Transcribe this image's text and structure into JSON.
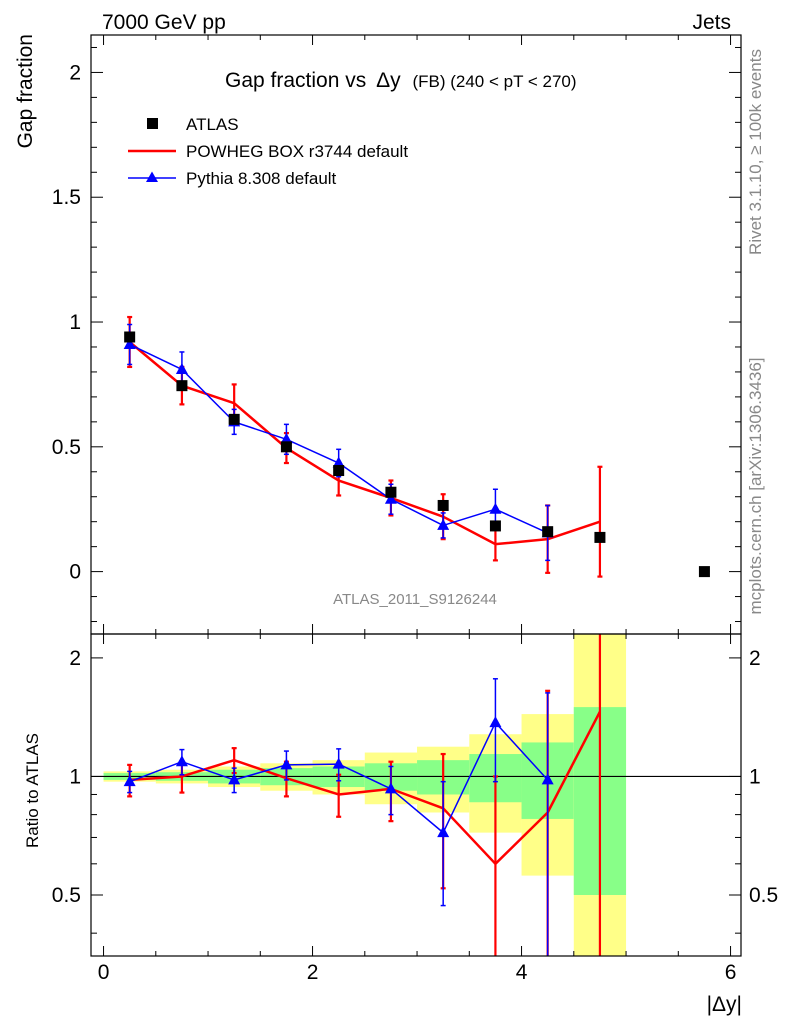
{
  "header": {
    "left": "7000 GeV pp",
    "right": "Jets",
    "title_main": "Gap fraction vs",
    "title_symbol": "Δy",
    "title_sub": "(FB)  (240 < pT < 270)",
    "side_top": "Rivet 3.1.10, ≥ 100k events",
    "side_bottom": "mcplots.cern.ch [arXiv:1306.3436]",
    "analysis": "ATLAS_2011_S9126244"
  },
  "colors": {
    "data": "#000000",
    "powheg": "#ff0000",
    "pythia": "#0000ff",
    "band_outer": "#ffff88",
    "band_inner": "#88ff88"
  },
  "chart_data": {
    "type": "line",
    "main": {
      "ylabel": "Gap fraction",
      "ylim": [
        -0.25,
        2.15
      ],
      "yticks": [
        {
          "v": 0,
          "label": "0"
        },
        {
          "v": 0.5,
          "label": "0.5"
        },
        {
          "v": 1,
          "label": "1"
        },
        {
          "v": 1.5,
          "label": "1.5"
        },
        {
          "v": 2,
          "label": "2"
        }
      ]
    },
    "ratio": {
      "ylabel": "Ratio to ATLAS",
      "ylim": [
        0.35,
        2.3
      ],
      "yticks": [
        {
          "v": 0.5,
          "label": "0.5"
        },
        {
          "v": 1,
          "label": "1"
        },
        {
          "v": 2,
          "label": "2"
        }
      ]
    },
    "xlabel": "|Δy|",
    "xlim": [
      -0.12,
      6.1
    ],
    "xticks": [
      {
        "v": 0,
        "label": "0"
      },
      {
        "v": 2,
        "label": "2"
      },
      {
        "v": 4,
        "label": "4"
      },
      {
        "v": 6,
        "label": "6"
      }
    ],
    "legend": [
      "ATLAS",
      "POWHEG BOX r3744 default",
      "Pythia 8.308 default"
    ],
    "legend_position": "top-left",
    "data": {
      "x": [
        0.25,
        0.75,
        1.25,
        1.75,
        2.25,
        2.75,
        3.25,
        3.75,
        4.25,
        4.75,
        5.75
      ],
      "y": [
        0.94,
        0.745,
        0.61,
        0.5,
        0.405,
        0.318,
        0.265,
        0.183,
        0.16,
        0.137,
        0.0
      ],
      "err": [
        0.015,
        0.015,
        0.015,
        0.015,
        0.015,
        0.015,
        0.015,
        0.015,
        0.015,
        0.015,
        0.0
      ]
    },
    "powheg": {
      "x": [
        0.25,
        0.75,
        1.25,
        1.75,
        2.25,
        2.75,
        3.25,
        3.75,
        4.25,
        4.75
      ],
      "y": [
        0.92,
        0.745,
        0.675,
        0.495,
        0.365,
        0.295,
        0.22,
        0.11,
        0.13,
        0.2
      ],
      "err": [
        0.1,
        0.075,
        0.075,
        0.06,
        0.06,
        0.07,
        0.09,
        0.065,
        0.135,
        0.22
      ]
    },
    "pythia": {
      "x": [
        0.25,
        0.75,
        1.25,
        1.75,
        2.25,
        2.75,
        3.25,
        3.75,
        4.25
      ],
      "y": [
        0.91,
        0.81,
        0.6,
        0.53,
        0.435,
        0.29,
        0.185,
        0.25,
        0.155
      ],
      "err": [
        0.08,
        0.07,
        0.05,
        0.06,
        0.055,
        0.06,
        0.05,
        0.08,
        0.11
      ]
    },
    "ratio_bands": [
      {
        "x0": 0.0,
        "x1": 0.5,
        "inner": [
          0.98,
          1.02
        ],
        "outer": [
          0.97,
          1.03
        ]
      },
      {
        "x0": 0.5,
        "x1": 1.0,
        "inner": [
          0.975,
          1.025
        ],
        "outer": [
          0.96,
          1.04
        ]
      },
      {
        "x0": 1.0,
        "x1": 1.5,
        "inner": [
          0.96,
          1.04
        ],
        "outer": [
          0.94,
          1.06
        ]
      },
      {
        "x0": 1.5,
        "x1": 2.0,
        "inner": [
          0.95,
          1.05
        ],
        "outer": [
          0.92,
          1.08
        ]
      },
      {
        "x0": 2.0,
        "x1": 2.5,
        "inner": [
          0.94,
          1.06
        ],
        "outer": [
          0.9,
          1.1
        ]
      },
      {
        "x0": 2.5,
        "x1": 3.0,
        "inner": [
          0.92,
          1.08
        ],
        "outer": [
          0.85,
          1.15
        ]
      },
      {
        "x0": 3.0,
        "x1": 3.5,
        "inner": [
          0.9,
          1.1
        ],
        "outer": [
          0.81,
          1.19
        ]
      },
      {
        "x0": 3.5,
        "x1": 4.0,
        "inner": [
          0.86,
          1.14
        ],
        "outer": [
          0.72,
          1.28
        ]
      },
      {
        "x0": 4.0,
        "x1": 4.5,
        "inner": [
          0.78,
          1.22
        ],
        "outer": [
          0.56,
          1.44
        ]
      },
      {
        "x0": 4.5,
        "x1": 5.0,
        "inner": [
          0.5,
          1.5
        ],
        "outer": [
          0.35,
          2.3
        ]
      }
    ],
    "powheg_ratio": {
      "x": [
        0.25,
        0.75,
        1.25,
        1.75,
        2.25,
        2.75,
        3.25,
        3.75,
        4.25,
        4.75
      ],
      "y": [
        0.98,
        1.0,
        1.1,
        0.99,
        0.9,
        0.93,
        0.83,
        0.6,
        0.81,
        1.46
      ],
      "err": [
        0.09,
        0.09,
        0.08,
        0.1,
        0.11,
        0.16,
        0.31,
        0.4,
        0.84,
        1.6
      ]
    },
    "pythia_ratio": {
      "x": [
        0.25,
        0.75,
        1.25,
        1.75,
        2.25,
        2.75,
        3.25,
        3.75,
        4.25
      ],
      "y": [
        0.97,
        1.09,
        0.98,
        1.07,
        1.075,
        0.93,
        0.72,
        1.37,
        0.98
      ],
      "err": [
        0.06,
        0.08,
        0.07,
        0.09,
        0.1,
        0.13,
        0.25,
        0.4,
        0.65
      ]
    }
  }
}
